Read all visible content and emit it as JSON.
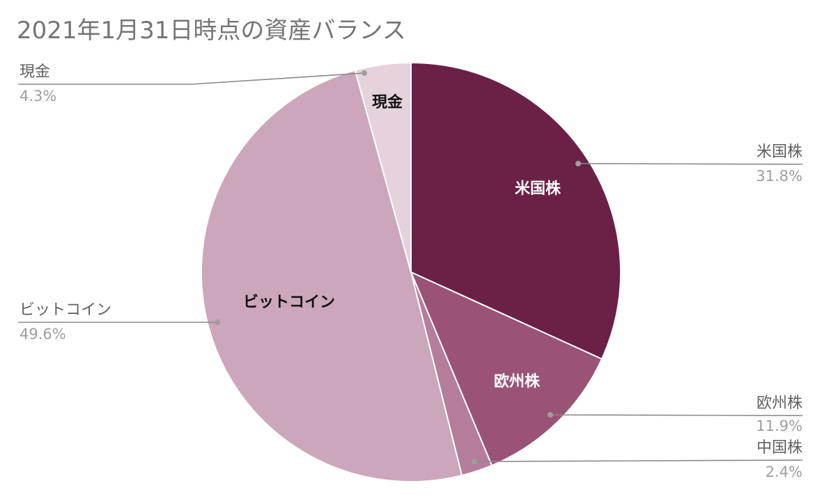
{
  "chart_data": {
    "type": "pie",
    "title": "2021年1月31日時点の資産バランス",
    "slices": [
      {
        "label": "米国株",
        "value": 31.8,
        "display": "31.8%",
        "color": "#6b2046",
        "text_color": "#ffffff",
        "side": "right"
      },
      {
        "label": "欧州株",
        "value": 11.9,
        "display": "11.9%",
        "color": "#9a5275",
        "text_color": "#ffffff",
        "side": "right"
      },
      {
        "label": "中国株",
        "value": 2.4,
        "display": "2.4%",
        "color": "#b67d9b",
        "text_color": "#ffffff",
        "side": "right"
      },
      {
        "label": "ビットコイン",
        "value": 49.6,
        "display": "49.6%",
        "color": "#cca6bb",
        "text_color": "#111111",
        "side": "left"
      },
      {
        "label": "現金",
        "value": 4.3,
        "display": "4.3%",
        "color": "#e5d2dc",
        "text_color": "#111111",
        "side": "left"
      }
    ],
    "start_angle": "12 o'clock",
    "direction": "clockwise",
    "legend": "callout labels"
  }
}
